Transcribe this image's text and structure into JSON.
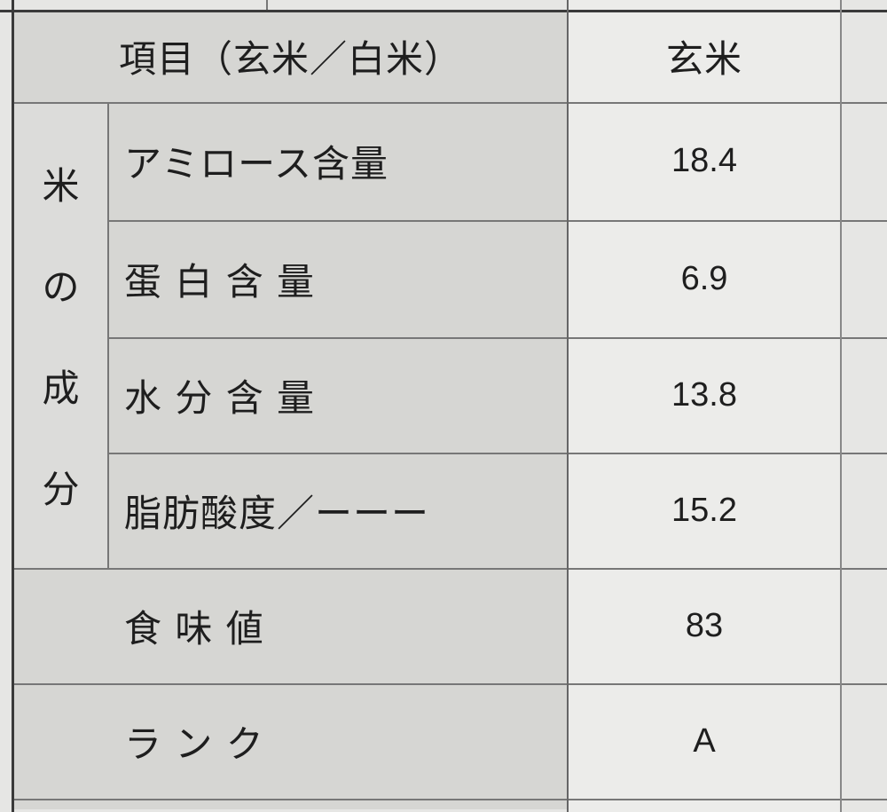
{
  "header": {
    "item": "項目（玄米／白米）",
    "col1": "玄米"
  },
  "group_label": [
    "米",
    "の",
    "成",
    "分"
  ],
  "rows": [
    {
      "label": "アミロース含量",
      "value": "18.4"
    },
    {
      "label": "蛋 白 含 量",
      "value": "6.9"
    },
    {
      "label": "水 分 含 量",
      "value": "13.8"
    },
    {
      "label": "脂肪酸度／ーーー",
      "value": "15.2"
    },
    {
      "label": "食 味 値",
      "value": "83"
    },
    {
      "label": "ラ ン ク",
      "value": "A"
    }
  ]
}
